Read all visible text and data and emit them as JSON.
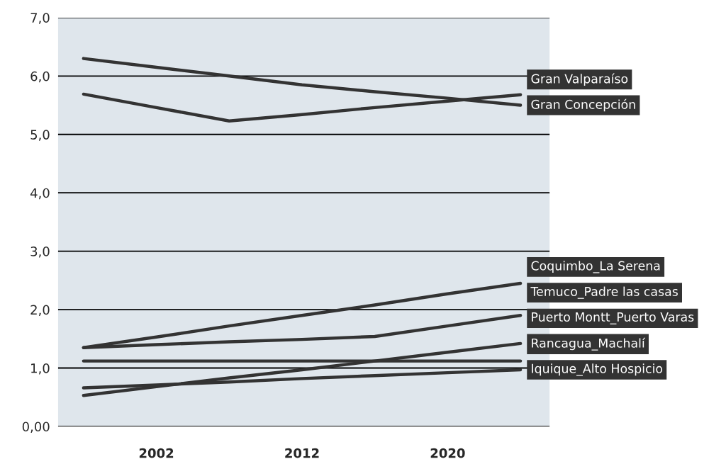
{
  "chart_data": {
    "type": "line",
    "categories": [
      null,
      "2002",
      null,
      "2012",
      null,
      "2020",
      null
    ],
    "ylim": [
      0,
      7
    ],
    "yticks": [
      {
        "value": 0,
        "label": "0,00"
      },
      {
        "value": 1,
        "label": "1,0"
      },
      {
        "value": 2,
        "label": "2,0"
      },
      {
        "value": 3,
        "label": "3,0"
      },
      {
        "value": 4,
        "label": "4,0"
      },
      {
        "value": 5,
        "label": "5,0"
      },
      {
        "value": 6,
        "label": "6,0"
      },
      {
        "value": 7,
        "label": "7,0"
      }
    ],
    "grid": "y",
    "marker": "none",
    "line_style": "solid",
    "series": [
      {
        "name": "Gran Valparaíso",
        "color": "#333333",
        "values": [
          5.69,
          5.46,
          5.23,
          5.34,
          5.46,
          5.57,
          5.68
        ]
      },
      {
        "name": "Gran Concepción",
        "color": "#333333",
        "values": [
          6.3,
          6.15,
          6.0,
          5.85,
          5.73,
          5.62,
          5.5
        ]
      },
      {
        "name": "Coquimbo_La Serena",
        "color": "#333333",
        "values": [
          1.35,
          1.53,
          1.72,
          1.9,
          2.08,
          2.27,
          2.45
        ]
      },
      {
        "name": "Temuco_Padre las casas",
        "color": "#333333",
        "values": [
          1.35,
          1.4,
          1.45,
          1.49,
          1.54,
          1.72,
          1.9
        ]
      },
      {
        "name": "Puerto Montt_Puerto Varas",
        "color": "#333333",
        "values": [
          0.53,
          0.68,
          0.83,
          0.97,
          1.12,
          1.27,
          1.42
        ]
      },
      {
        "name": "Rancagua_Machalí",
        "color": "#333333",
        "values": [
          1.12,
          1.12,
          1.12,
          1.12,
          1.12,
          1.12,
          1.12
        ]
      },
      {
        "name": "Iquique_Alto Hospicio",
        "color": "#333333",
        "values": [
          0.66,
          0.71,
          0.76,
          0.82,
          0.87,
          0.92,
          0.97
        ]
      }
    ]
  }
}
